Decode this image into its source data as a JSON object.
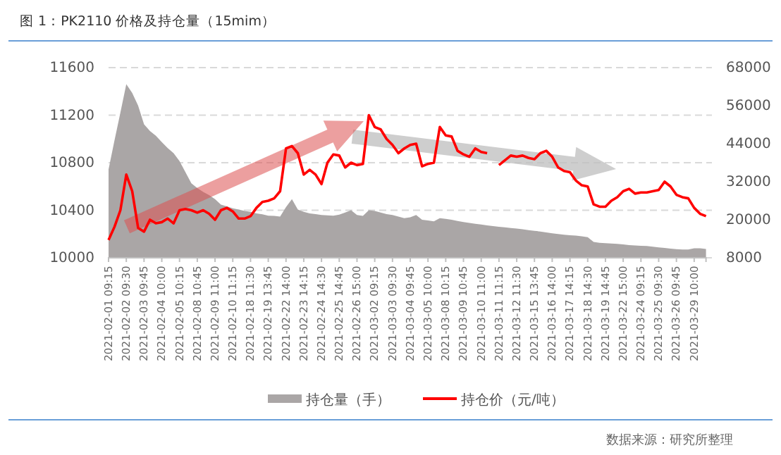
{
  "chart_data": {
    "type": "line",
    "title": "图 1：PK2110 价格及持仓量（15mim）",
    "categories": [
      "2021-02-01 09:15",
      null,
      null,
      "2021-02-02 09:30",
      null,
      null,
      "2021-02-03 09:45",
      null,
      null,
      "2021-02-04 10:00",
      null,
      null,
      "2021-02-05 10:15",
      null,
      null,
      "2021-02-08 10:45",
      null,
      null,
      "2021-02-09 11:00",
      null,
      null,
      "2021-02-10 11:15",
      null,
      null,
      "2021-02-18 11:30",
      null,
      null,
      "2021-02-19 13:45",
      null,
      null,
      "2021-02-22 14:00",
      null,
      null,
      "2021-02-23 14:15",
      null,
      null,
      "2021-02-24 14:30",
      null,
      null,
      "2021-02-25 14:45",
      null,
      null,
      "2021-02-26 15:00",
      null,
      null,
      "2021-03-02 09:15",
      null,
      null,
      "2021-03-03 09:30",
      null,
      null,
      "2021-03-04 09:45",
      null,
      null,
      "2021-03-05 10:00",
      null,
      null,
      "2021-03-08 10:15",
      null,
      null,
      "2021-03-09 10:45",
      null,
      null,
      "2021-03-10 11:00",
      null,
      null,
      "2021-03-11 11:15",
      null,
      null,
      "2021-03-12 11:30",
      null,
      null,
      "2021-03-15 13:45",
      null,
      null,
      "2021-03-16 14:00",
      null,
      null,
      "2021-03-17 14:15",
      null,
      null,
      "2021-03-18 14:30",
      null,
      null,
      "2021-03-19 14:45",
      null,
      null,
      "2021-03-22 15:00",
      null,
      null,
      "2021-03-24 09:15",
      null,
      null,
      "2021-03-25 09:30",
      null,
      null,
      "2021-03-26 09:45",
      null,
      null,
      "2021-03-29 10:00",
      null,
      null
    ],
    "series": [
      {
        "name": "持仓量（手）",
        "type": "area",
        "axis": "y2",
        "color": "#aaa6a6",
        "values": [
          35900,
          45000,
          53800,
          62800,
          60000,
          56000,
          50100,
          48000,
          46500,
          44500,
          42600,
          41000,
          38500,
          35000,
          31500,
          30000,
          28800,
          27800,
          26500,
          24800,
          24200,
          23600,
          23200,
          22800,
          22500,
          22000,
          21700,
          21300,
          21200,
          21000,
          24000,
          26500,
          23200,
          22500,
          22000,
          21800,
          21500,
          21400,
          21300,
          21600,
          22300,
          23000,
          21500,
          21200,
          23000,
          22800,
          22300,
          21800,
          21500,
          21000,
          20500,
          20800,
          21500,
          20000,
          19800,
          19500,
          20500,
          20300,
          20000,
          19600,
          19300,
          19000,
          18700,
          18500,
          18200,
          18000,
          17800,
          17600,
          17400,
          17200,
          17000,
          16700,
          16500,
          16300,
          16000,
          15700,
          15500,
          15300,
          15100,
          15000,
          14800,
          14500,
          13000,
          12700,
          12600,
          12500,
          12400,
          12200,
          12000,
          11900,
          11800,
          11700,
          11500,
          11300,
          11100,
          10900,
          10700,
          10600,
          10600,
          11000,
          11000,
          10800
        ]
      },
      {
        "name": "持仓价（元/吨）",
        "color": "#ff0000",
        "values": [
          10150,
          10260,
          10400,
          10700,
          10560,
          10250,
          10220,
          10320,
          10290,
          10300,
          10330,
          10290,
          10400,
          10410,
          10400,
          10380,
          10400,
          10370,
          10320,
          10400,
          10420,
          10390,
          10330,
          10330,
          10350,
          10420,
          10470,
          10480,
          10500,
          10560,
          10920,
          10940,
          10880,
          10700,
          10740,
          10700,
          10620,
          10800,
          10870,
          10860,
          10760,
          10800,
          10780,
          10790,
          11200,
          11100,
          11080,
          11000,
          10950,
          10880,
          10920,
          10950,
          10960,
          10770,
          10790,
          10800,
          11100,
          11030,
          11020,
          10900,
          10870,
          10850,
          10920,
          10890,
          10880,
          null,
          10780,
          10820,
          10860,
          10850,
          10860,
          10840,
          10830,
          10880,
          10900,
          10850,
          10760,
          10730,
          10720,
          10650,
          10610,
          10600,
          10450,
          10430,
          10430,
          10480,
          10510,
          10560,
          10580,
          10540,
          10550,
          10550,
          10560,
          10570,
          10640,
          10600,
          10530,
          10510,
          10500,
          10420,
          10370,
          10350
        ]
      }
    ],
    "ylim": [
      10000,
      11600
    ],
    "yticks": [
      10000,
      10400,
      10800,
      11200,
      11600
    ],
    "y2lim": [
      8000,
      68000
    ],
    "y2ticks": [
      8000,
      20000,
      32000,
      44000,
      56000,
      68000
    ],
    "grid": "y",
    "legend": "bottom",
    "annotations": [
      "数据来源：研究所整理"
    ]
  }
}
